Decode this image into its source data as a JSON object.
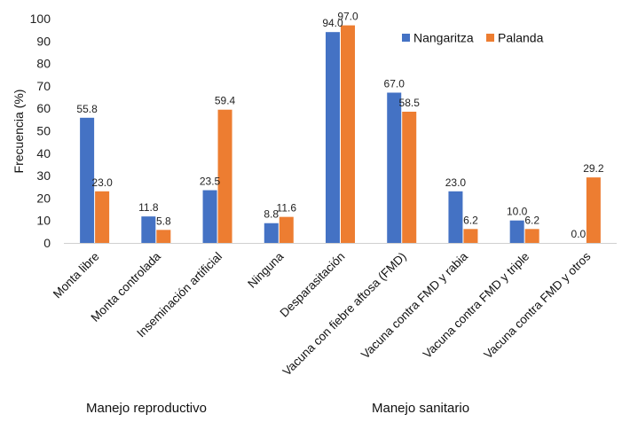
{
  "chart_data": {
    "type": "bar",
    "ylabel": "Frecuencia (%)",
    "ylim": [
      0,
      100
    ],
    "yticks": [
      0,
      10,
      20,
      30,
      40,
      50,
      60,
      70,
      80,
      90,
      100
    ],
    "categories": [
      "Monta libre",
      "Monta controlada",
      "Inseminación artificial",
      "Ninguna",
      "Desparasitación",
      "Vacuna con fiebre aftosa (FMD)",
      "Vacuna contra FMD y rabia",
      "Vacuna contra FMD y triple",
      "Vacuna contra FMD y otros"
    ],
    "series": [
      {
        "name": "Nangaritza",
        "color": "#4472C4",
        "values": [
          55.8,
          11.8,
          23.5,
          8.8,
          94.0,
          67.0,
          23.0,
          10.0,
          0.0
        ],
        "labels": [
          "55.8",
          "11.8",
          "23.5",
          "8.8",
          "94.0",
          "67.0",
          "23.0",
          "10.0",
          "0.0"
        ]
      },
      {
        "name": "Palanda",
        "color": "#ED7D31",
        "values": [
          23.0,
          5.8,
          59.4,
          11.6,
          97.0,
          58.5,
          6.2,
          6.2,
          29.2
        ],
        "labels": [
          "23.0",
          "5.8",
          "59.4",
          "11.6",
          "97.0",
          "58.5",
          "6.2",
          "6.2",
          "29.2"
        ]
      }
    ],
    "legend_position": "top-right",
    "grid": false,
    "groups": [
      {
        "label": "Manejo reproductivo"
      },
      {
        "label": "Manejo sanitario"
      }
    ]
  }
}
